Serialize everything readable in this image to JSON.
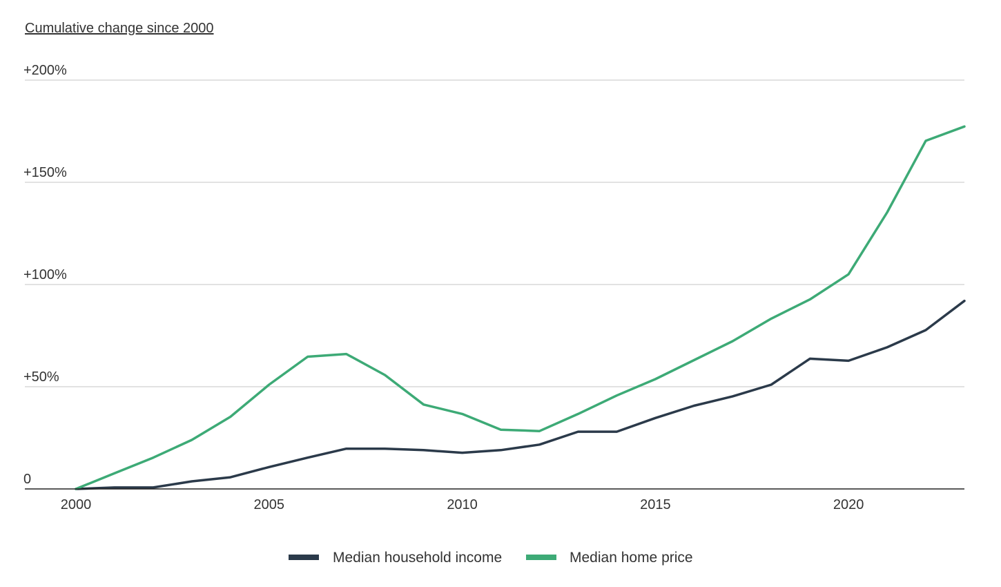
{
  "chart_data": {
    "type": "line",
    "title": "",
    "subtitle": "Cumulative change since 2000",
    "xlabel": "",
    "ylabel": "",
    "x": [
      2000,
      2001,
      2002,
      2003,
      2004,
      2005,
      2006,
      2007,
      2008,
      2009,
      2010,
      2011,
      2012,
      2013,
      2014,
      2015,
      2016,
      2017,
      2018,
      2019,
      2020,
      2021,
      2022,
      2023
    ],
    "xlim": [
      2000,
      2023
    ],
    "ylim": [
      0,
      200
    ],
    "x_ticks": [
      {
        "value": 2000,
        "label": "2000"
      },
      {
        "value": 2005,
        "label": "2005"
      },
      {
        "value": 2010,
        "label": "2010"
      },
      {
        "value": 2015,
        "label": "2015"
      },
      {
        "value": 2020,
        "label": "2020"
      }
    ],
    "y_ticks": [
      {
        "value": 0,
        "label": "0"
      },
      {
        "value": 50,
        "label": "+50%"
      },
      {
        "value": 100,
        "label": "+100%"
      },
      {
        "value": 150,
        "label": "+150%"
      },
      {
        "value": 200,
        "label": "+200%"
      }
    ],
    "grid": true,
    "legend_position": "bottom-center",
    "series": [
      {
        "name": "Median household income",
        "color": "#2b3a4a",
        "values": [
          0,
          0.7,
          0.7,
          3.7,
          5.7,
          10.7,
          15.3,
          19.7,
          19.7,
          19.0,
          17.7,
          19.0,
          21.7,
          28.0,
          28.0,
          34.7,
          40.7,
          45.3,
          51.0,
          63.7,
          62.7,
          69.3,
          77.7,
          92.0
        ]
      },
      {
        "name": "Median home price",
        "color": "#3daa76",
        "values": [
          0,
          7.7,
          15.3,
          24.0,
          35.3,
          51.0,
          64.7,
          66.0,
          55.7,
          41.3,
          36.7,
          29.0,
          28.3,
          36.7,
          45.7,
          53.7,
          63.0,
          72.3,
          83.3,
          92.7,
          105.0,
          135.3,
          170.3,
          177.3
        ]
      }
    ]
  }
}
